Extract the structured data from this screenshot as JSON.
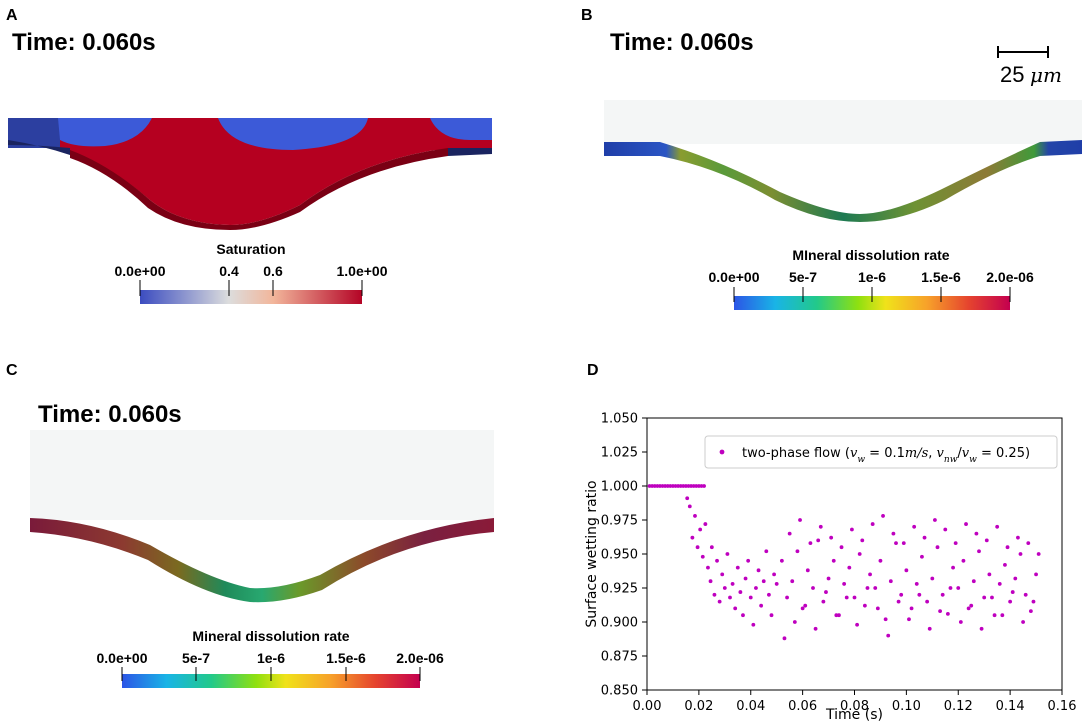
{
  "panels": {
    "A": {
      "letter": "A",
      "time_label": "Time: 0.060s",
      "colorbar": {
        "title": "Saturation",
        "ticks": [
          "0.0e+00",
          "0.4",
          "0.6",
          "1.0e+00"
        ],
        "tick_values": [
          0.0,
          0.4,
          0.6,
          1.0
        ],
        "range": [
          0.0,
          1.0
        ]
      },
      "colors": {
        "low": "#3b4cc0",
        "mid": "#dddddd",
        "high": "#b40426"
      }
    },
    "B": {
      "letter": "B",
      "time_label": "Time: 0.060s",
      "scale_bar": {
        "value": "25",
        "unit": "μm"
      },
      "colorbar": {
        "title": "MIneral dissolution rate",
        "ticks": [
          "0.0e+00",
          "5e-7",
          "1e-6",
          "1.5e-6",
          "2.0e-06"
        ],
        "tick_values": [
          0,
          5e-07,
          1e-06,
          1.5e-06,
          2e-06
        ],
        "range": [
          0,
          2e-06
        ]
      }
    },
    "C": {
      "letter": "C",
      "time_label": "Time: 0.060s",
      "colorbar": {
        "title": "Mineral dissolution rate",
        "ticks": [
          "0.0e+00",
          "5e-7",
          "1e-6",
          "1.5e-6",
          "2.0e-06"
        ],
        "tick_values": [
          0,
          5e-07,
          1e-06,
          1.5e-06,
          2e-06
        ],
        "range": [
          0,
          2e-06
        ]
      }
    },
    "D": {
      "letter": "D"
    }
  },
  "chart_data": {
    "type": "scatter",
    "xlabel": "Time (s)",
    "ylabel": "Surface wetting ratio",
    "xlim": [
      0.0,
      0.16
    ],
    "ylim": [
      0.85,
      1.05
    ],
    "xticks": [
      0.0,
      0.02,
      0.04,
      0.06,
      0.08,
      0.1,
      0.12,
      0.14,
      0.16
    ],
    "xtick_labels": [
      "0.00",
      "0.02",
      "0.04",
      "0.06",
      "0.08",
      "0.10",
      "0.12",
      "0.14",
      "0.16"
    ],
    "yticks": [
      0.85,
      0.875,
      0.9,
      0.925,
      0.95,
      0.975,
      1.0,
      1.025,
      1.05
    ],
    "ytick_labels": [
      "0.850",
      "0.875",
      "0.900",
      "0.925",
      "0.950",
      "0.975",
      "1.000",
      "1.025",
      "1.050"
    ],
    "legend": {
      "label": "two-phase flow (v_w = 0.1m/s, v_nw/v_w = 0.25)",
      "prefix": "two-phase flow (",
      "vw_eq": " = 0.1",
      "unit": "m/s",
      "ratio_eq": " = 0.25)",
      "placement": "top-right"
    },
    "marker_color": "#bf00bf",
    "series": [
      {
        "name": "two-phase flow",
        "x": [
          0.001,
          0.002,
          0.003,
          0.004,
          0.005,
          0.006,
          0.007,
          0.008,
          0.009,
          0.01,
          0.011,
          0.012,
          0.013,
          0.014,
          0.015,
          0.016,
          0.017,
          0.018,
          0.019,
          0.02,
          0.021,
          0.022,
          0.0155,
          0.0165,
          0.0175,
          0.0185,
          0.0195,
          0.0205,
          0.0215,
          0.0225,
          0.0235,
          0.0245,
          0.025,
          0.026,
          0.027,
          0.028,
          0.029,
          0.03,
          0.031,
          0.032,
          0.033,
          0.034,
          0.035,
          0.036,
          0.037,
          0.038,
          0.039,
          0.04,
          0.041,
          0.042,
          0.043,
          0.044,
          0.045,
          0.046,
          0.047,
          0.048,
          0.049,
          0.05,
          0.052,
          0.054,
          0.056,
          0.058,
          0.06,
          0.062,
          0.064,
          0.066,
          0.068,
          0.07,
          0.072,
          0.074,
          0.076,
          0.078,
          0.08,
          0.082,
          0.084,
          0.086,
          0.088,
          0.09,
          0.092,
          0.094,
          0.096,
          0.098,
          0.1,
          0.102,
          0.104,
          0.106,
          0.108,
          0.11,
          0.112,
          0.114,
          0.116,
          0.118,
          0.12,
          0.122,
          0.124,
          0.126,
          0.128,
          0.13,
          0.132,
          0.134,
          0.136,
          0.138,
          0.14,
          0.142,
          0.144,
          0.146,
          0.148,
          0.15,
          0.053,
          0.057,
          0.061,
          0.065,
          0.069,
          0.073,
          0.077,
          0.081,
          0.085,
          0.089,
          0.093,
          0.097,
          0.101,
          0.105,
          0.109,
          0.113,
          0.117,
          0.121,
          0.125,
          0.129,
          0.133,
          0.137,
          0.141,
          0.145,
          0.149,
          0.055,
          0.059,
          0.063,
          0.067,
          0.071,
          0.075,
          0.079,
          0.083,
          0.087,
          0.091,
          0.095,
          0.099,
          0.103,
          0.107,
          0.111,
          0.115,
          0.119,
          0.123,
          0.127,
          0.131,
          0.135,
          0.139,
          0.143,
          0.147,
          0.151
        ],
        "y": [
          1.0,
          1.0,
          1.0,
          1.0,
          1.0,
          1.0,
          1.0,
          1.0,
          1.0,
          1.0,
          1.0,
          1.0,
          1.0,
          1.0,
          1.0,
          1.0,
          1.0,
          1.0,
          1.0,
          1.0,
          1.0,
          1.0,
          0.991,
          0.985,
          0.962,
          0.978,
          0.955,
          0.968,
          0.948,
          0.972,
          0.94,
          0.93,
          0.955,
          0.92,
          0.945,
          0.915,
          0.935,
          0.925,
          0.95,
          0.918,
          0.928,
          0.91,
          0.94,
          0.922,
          0.905,
          0.932,
          0.945,
          0.918,
          0.898,
          0.925,
          0.938,
          0.912,
          0.93,
          0.952,
          0.92,
          0.905,
          0.935,
          0.928,
          0.945,
          0.918,
          0.93,
          0.952,
          0.91,
          0.938,
          0.925,
          0.96,
          0.915,
          0.932,
          0.945,
          0.905,
          0.928,
          0.94,
          0.918,
          0.95,
          0.912,
          0.935,
          0.925,
          0.945,
          0.902,
          0.93,
          0.958,
          0.92,
          0.938,
          0.91,
          0.928,
          0.948,
          0.915,
          0.932,
          0.955,
          0.92,
          0.906,
          0.94,
          0.925,
          0.945,
          0.91,
          0.93,
          0.952,
          0.918,
          0.935,
          0.905,
          0.928,
          0.942,
          0.915,
          0.932,
          0.95,
          0.92,
          0.908,
          0.935,
          0.888,
          0.9,
          0.912,
          0.895,
          0.922,
          0.905,
          0.918,
          0.898,
          0.925,
          0.91,
          0.89,
          0.915,
          0.902,
          0.92,
          0.895,
          0.908,
          0.925,
          0.9,
          0.912,
          0.895,
          0.918,
          0.905,
          0.922,
          0.9,
          0.915,
          0.965,
          0.975,
          0.958,
          0.97,
          0.962,
          0.955,
          0.968,
          0.96,
          0.972,
          0.978,
          0.965,
          0.958,
          0.97,
          0.962,
          0.975,
          0.968,
          0.958,
          0.972,
          0.965,
          0.96,
          0.97,
          0.955,
          0.962,
          0.958,
          0.95
        ]
      }
    ]
  }
}
